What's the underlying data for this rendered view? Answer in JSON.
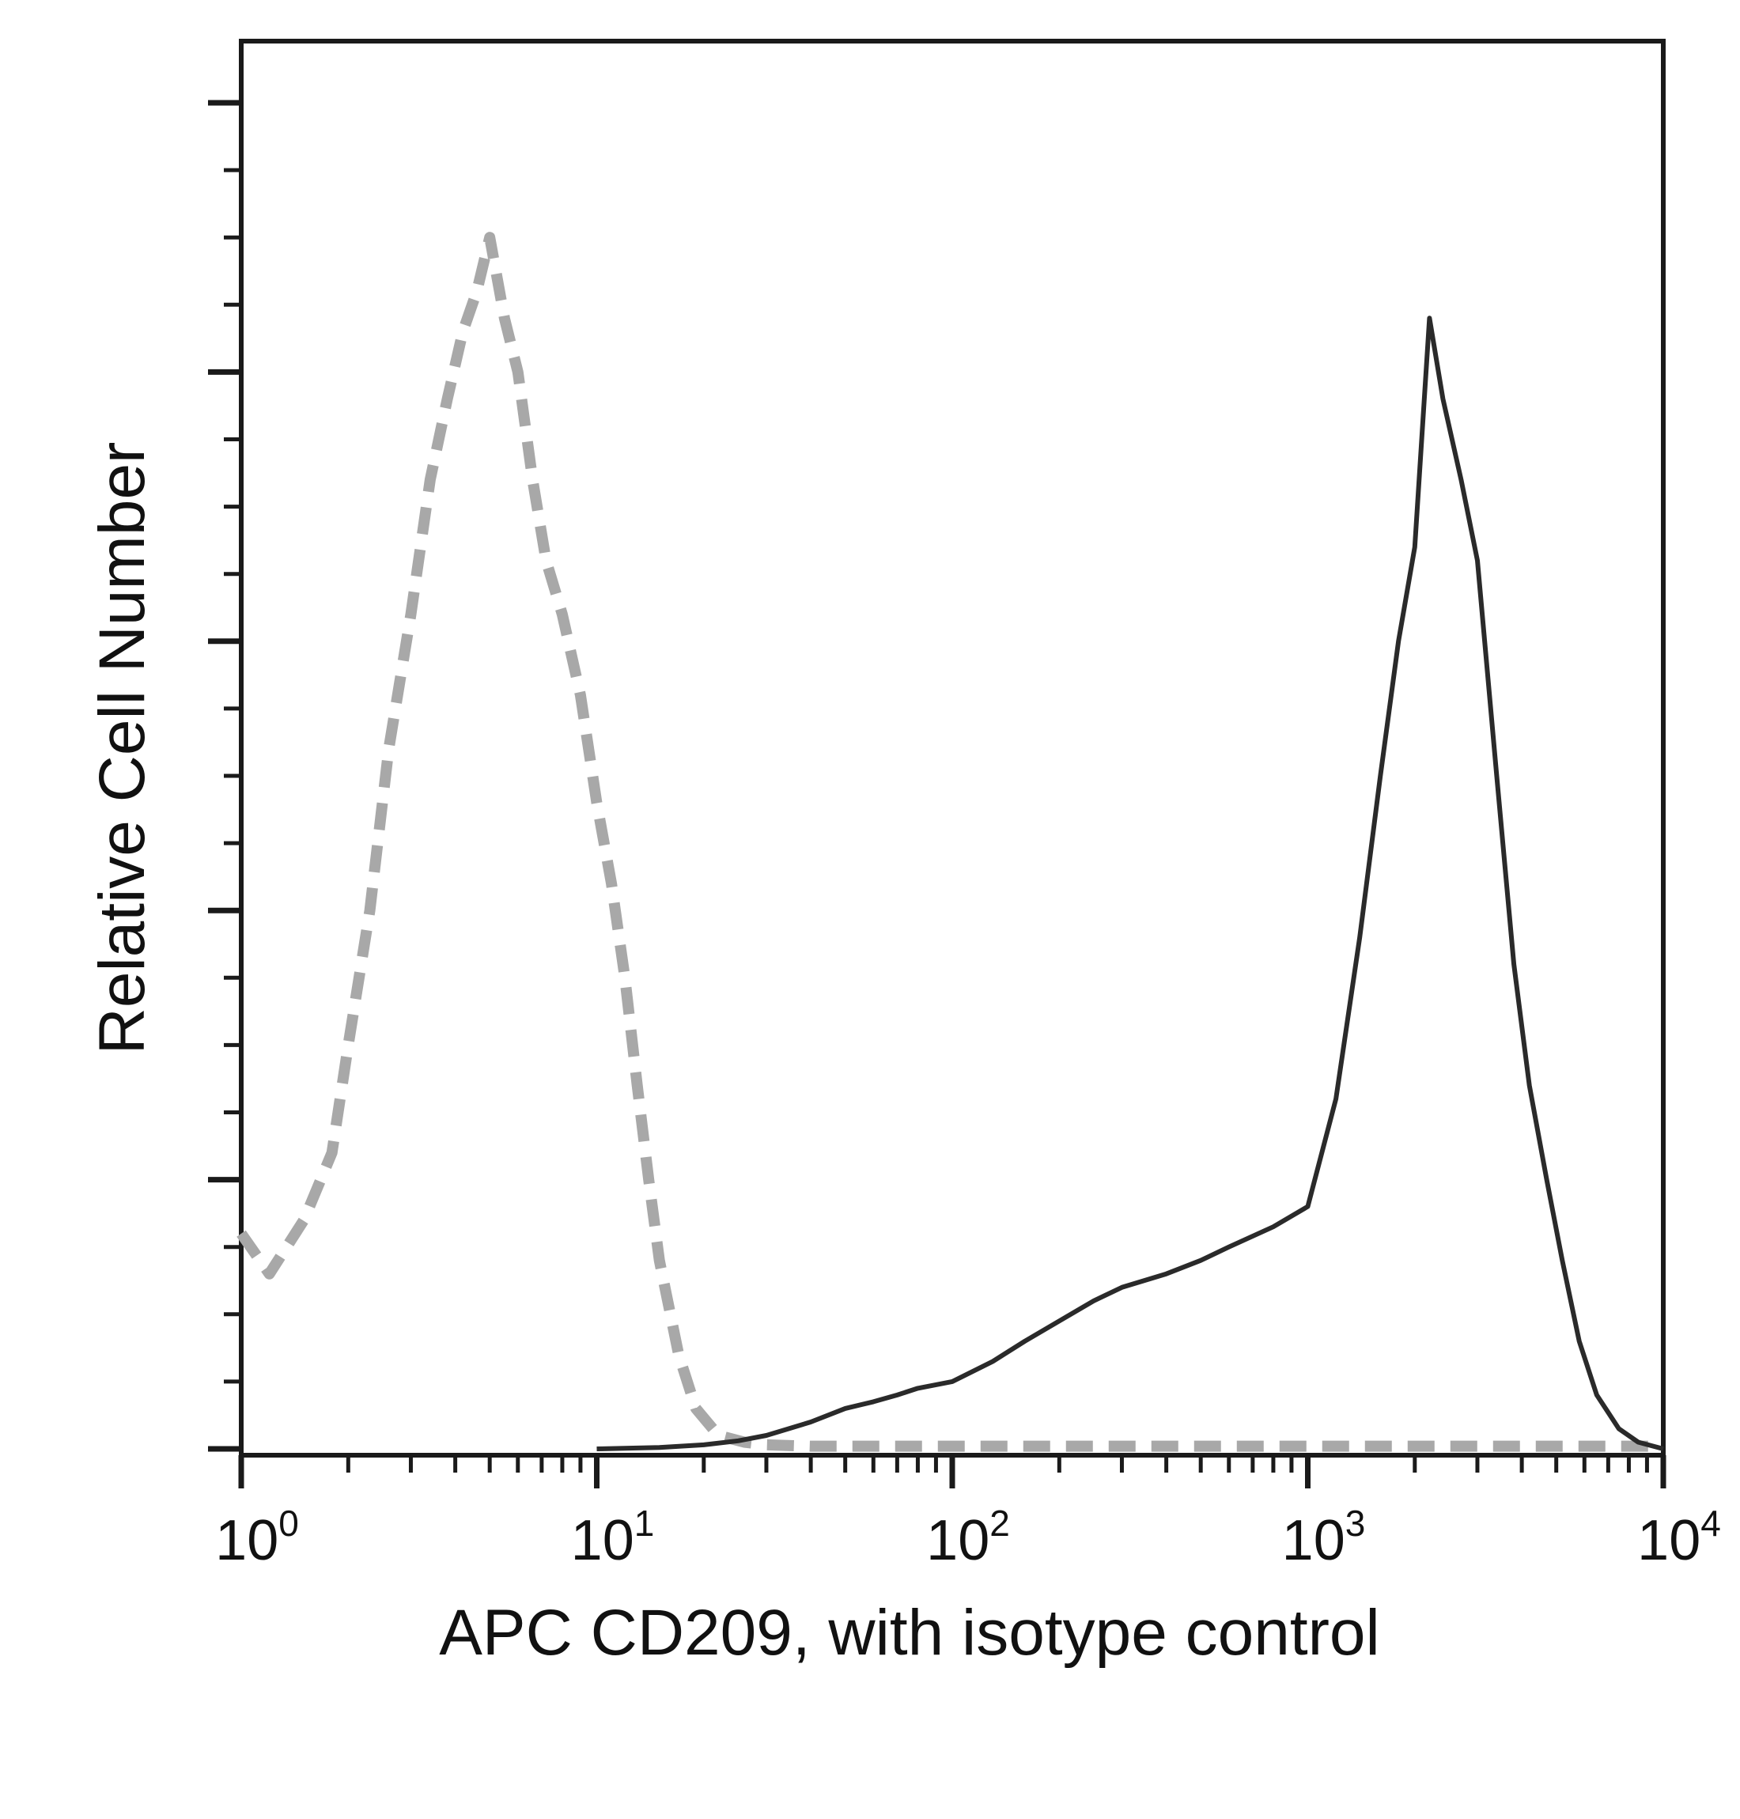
{
  "chart_data": {
    "type": "line",
    "xlabel": "APC CD209, with isotype control",
    "ylabel": "Relative Cell Number",
    "x_scale": "log10",
    "xlim": [
      1,
      10000
    ],
    "ylim": [
      0,
      100
    ],
    "y_tick_labels_shown": false,
    "grid": false,
    "legend": "none",
    "x_ticks": [
      {
        "value": 1,
        "base": "10",
        "exp": "0"
      },
      {
        "value": 10,
        "base": "10",
        "exp": "1"
      },
      {
        "value": 100,
        "base": "10",
        "exp": "2"
      },
      {
        "value": 1000,
        "base": "10",
        "exp": "3"
      },
      {
        "value": 10000,
        "base": "10",
        "exp": "4"
      }
    ],
    "series": [
      {
        "color": "#a8a8a8",
        "style": "dashed",
        "x": [
          1,
          1.2,
          1.5,
          1.8,
          2.0,
          2.3,
          2.6,
          3.0,
          3.4,
          3.8,
          4.2,
          4.6,
          5.0,
          5.5,
          6.0,
          6.6,
          7.2,
          8.0,
          9.0,
          10,
          11,
          12,
          13,
          14,
          15,
          17,
          19,
          22,
          26,
          30,
          40,
          60,
          100,
          300,
          1000,
          3000,
          10000
        ],
        "y": [
          16,
          13,
          17,
          22,
          30,
          40,
          52,
          62,
          72,
          78,
          83,
          86,
          90,
          84,
          80,
          72,
          66,
          62,
          56,
          48,
          42,
          35,
          27,
          20,
          14,
          7,
          3,
          1,
          0.5,
          0.3,
          0.2,
          0.2,
          0.2,
          0.2,
          0.2,
          0.2,
          0.2
        ]
      },
      {
        "color": "#2a2a2a",
        "style": "solid",
        "x": [
          10,
          15,
          20,
          25,
          30,
          40,
          50,
          60,
          70,
          80,
          100,
          130,
          160,
          200,
          250,
          300,
          400,
          500,
          600,
          800,
          1000,
          1200,
          1400,
          1600,
          1800,
          2000,
          2200,
          2400,
          2700,
          3000,
          3400,
          3800,
          4200,
          4700,
          5200,
          5800,
          6500,
          7500,
          8500,
          10000
        ],
        "y": [
          0,
          0.1,
          0.3,
          0.6,
          1,
          2,
          3,
          3.5,
          4,
          4.5,
          5,
          6.5,
          8,
          9.5,
          11,
          12,
          13,
          14,
          15,
          16.5,
          18,
          26,
          38,
          50,
          60,
          67,
          84,
          78,
          72,
          66,
          50,
          36,
          27,
          20,
          14,
          8,
          4,
          1.5,
          0.5,
          0
        ]
      }
    ]
  }
}
